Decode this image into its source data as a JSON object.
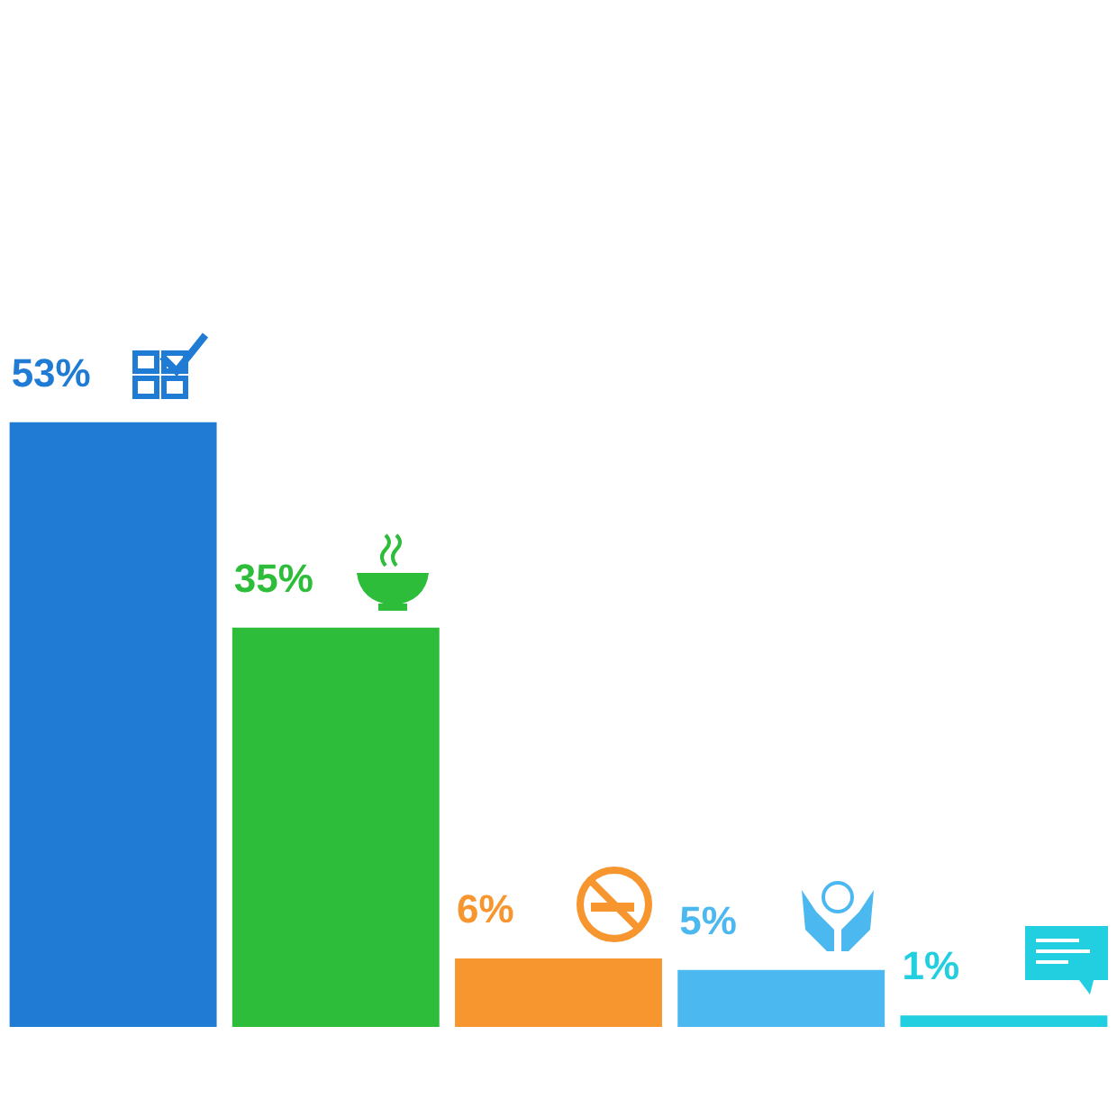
{
  "chart_data": {
    "type": "bar",
    "categories": [
      null,
      null,
      null,
      null,
      null
    ],
    "values": [
      53,
      35,
      6,
      5,
      1
    ],
    "colors": [
      "#1f7bd4",
      "#2dbd3a",
      "#f7952f",
      "#4cb8f0",
      "#22cfe0"
    ],
    "value_labels": [
      "53%",
      "35%",
      "6%",
      "5%",
      "1%"
    ],
    "legend": false
  }
}
